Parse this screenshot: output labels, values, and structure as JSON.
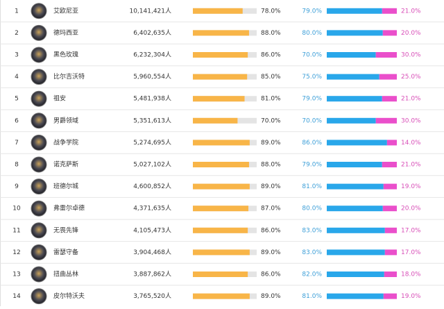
{
  "table": {
    "rows": [
      [
        "1",
        "艾欧尼亚",
        "10,141,421人",
        "78.0%",
        "79.0%",
        "21.0%"
      ],
      [
        "2",
        "德玛西亚",
        "6,402,635人",
        "88.0%",
        "80.0%",
        "20.0%"
      ],
      [
        "3",
        "黑色玫瑰",
        "6,232,304人",
        "86.0%",
        "70.0%",
        "30.0%"
      ],
      [
        "4",
        "比尔吉沃特",
        "5,960,554人",
        "85.0%",
        "75.0%",
        "25.0%"
      ],
      [
        "5",
        "祖安",
        "5,481,938人",
        "81.0%",
        "79.0%",
        "21.0%"
      ],
      [
        "6",
        "男爵领域",
        "5,351,613人",
        "70.0%",
        "70.0%",
        "30.0%"
      ],
      [
        "7",
        "战争学院",
        "5,274,695人",
        "89.0%",
        "86.0%",
        "14.0%"
      ],
      [
        "8",
        "诺克萨斯",
        "5,027,102人",
        "88.0%",
        "79.0%",
        "21.0%"
      ],
      [
        "9",
        "班德尔城",
        "4,600,852人",
        "89.0%",
        "81.0%",
        "19.0%"
      ],
      [
        "10",
        "弗雷尔卓德",
        "4,371,635人",
        "87.0%",
        "80.0%",
        "20.0%"
      ],
      [
        "11",
        "无畏先锋",
        "4,105,473人",
        "86.0%",
        "83.0%",
        "17.0%"
      ],
      [
        "12",
        "雷瑟守备",
        "3,904,468人",
        "89.0%",
        "83.0%",
        "17.0%"
      ],
      [
        "13",
        "扭曲丛林",
        "3,887,862人",
        "86.0%",
        "82.0%",
        "18.0%"
      ],
      [
        "14",
        "皮尔特沃夫",
        "3,765,520人",
        "89.0%",
        "81.0%",
        "19.0%"
      ]
    ]
  }
}
